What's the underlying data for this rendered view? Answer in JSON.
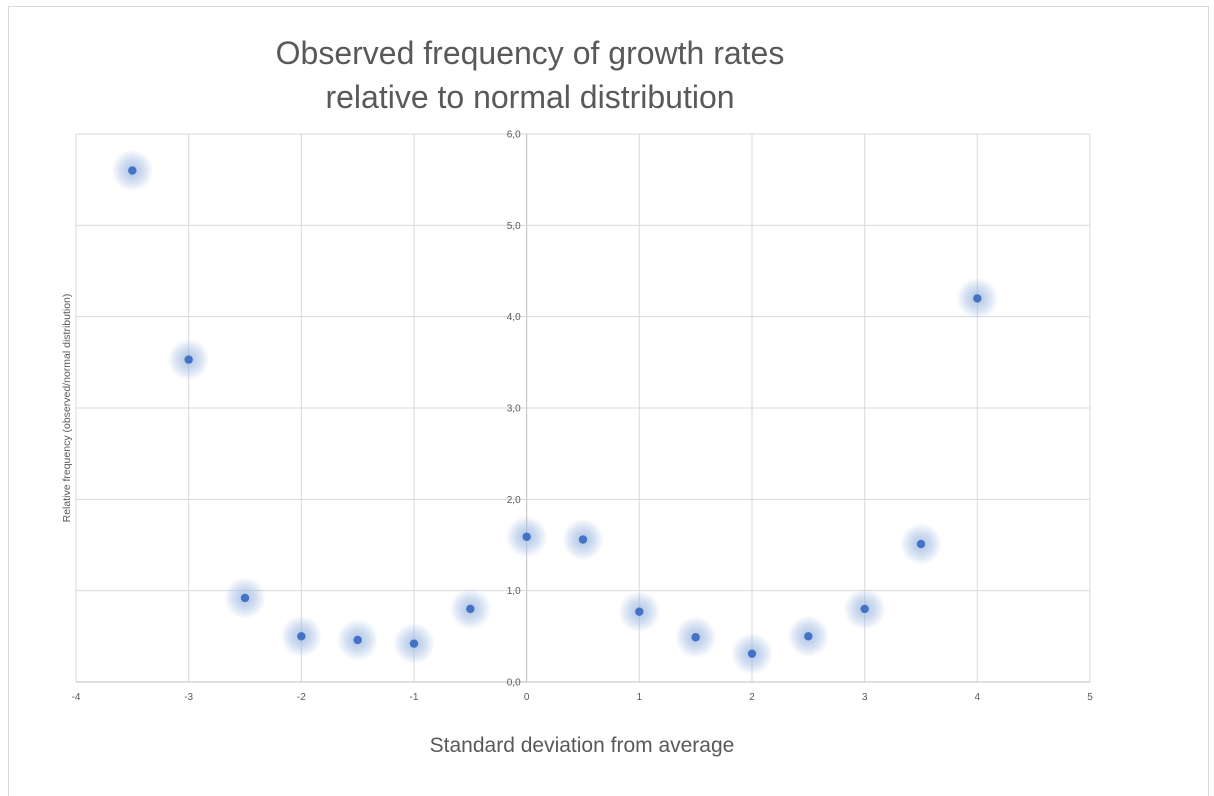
{
  "chart_data": {
    "type": "scatter",
    "title": [
      "Observed frequency of growth rates",
      "relative to normal distribution"
    ],
    "xlabel": "Standard deviation from average",
    "ylabel": "Relative frequency (observed/normal distribution)",
    "xlim": [
      -4,
      5
    ],
    "ylim": [
      0,
      6
    ],
    "x_ticks": [
      "-4",
      "-3",
      "-2",
      "-1",
      "0",
      "1",
      "2",
      "3",
      "4",
      "5"
    ],
    "y_ticks": [
      "0,0",
      "1,0",
      "2,0",
      "3,0",
      "4,0",
      "5,0",
      "6,0"
    ],
    "grid": true,
    "marker_color": "#4472c4",
    "glow_color": "#9fb9e2",
    "points": [
      {
        "x": -3.5,
        "y": 5.6
      },
      {
        "x": -3.0,
        "y": 3.53
      },
      {
        "x": -2.5,
        "y": 0.92
      },
      {
        "x": -2.0,
        "y": 0.5
      },
      {
        "x": -1.5,
        "y": 0.46
      },
      {
        "x": -1.0,
        "y": 0.42
      },
      {
        "x": -0.5,
        "y": 0.8
      },
      {
        "x": 0.0,
        "y": 1.59
      },
      {
        "x": 0.5,
        "y": 1.56
      },
      {
        "x": 1.0,
        "y": 0.77
      },
      {
        "x": 1.5,
        "y": 0.49
      },
      {
        "x": 2.0,
        "y": 0.31
      },
      {
        "x": 2.5,
        "y": 0.5
      },
      {
        "x": 3.0,
        "y": 0.8
      },
      {
        "x": 3.5,
        "y": 1.51
      },
      {
        "x": 4.0,
        "y": 4.2
      }
    ]
  }
}
